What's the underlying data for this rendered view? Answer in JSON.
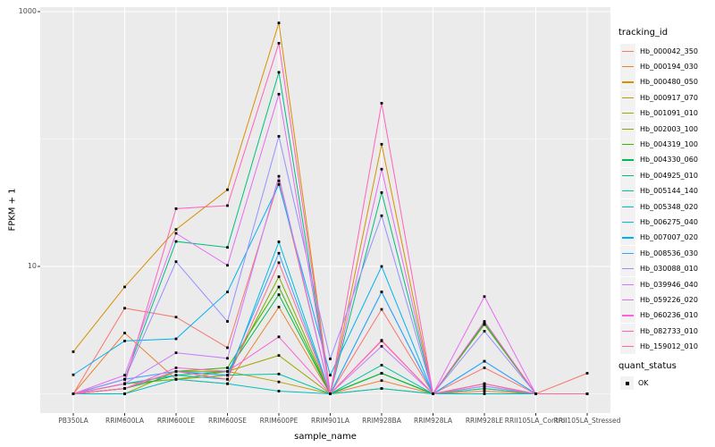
{
  "figure": {
    "ylabel": "FPKM + 1",
    "xlabel": "sample_name"
  },
  "legend": {
    "tracking": {
      "title": "tracking_id"
    },
    "quant": {
      "title": "quant_status",
      "items": [
        {
          "label": "OK"
        }
      ]
    }
  },
  "chart_data": {
    "type": "line",
    "title": "",
    "xlabel": "sample_name",
    "ylabel": "FPKM + 1",
    "y_scale": "log10",
    "ylim": [
      1,
      1000
    ],
    "grid": true,
    "legend_position": "right",
    "panel_bg": "#EBEBEB",
    "grid_color": "#FFFFFF",
    "point_color": "#000000",
    "y_ticks": [
      {
        "value": 10,
        "label": "10"
      },
      {
        "value": 1000,
        "label": "1000"
      }
    ],
    "y_minor_gridlines": [
      1,
      100
    ],
    "quant_status": "OK",
    "categories": [
      "PB350LA",
      "RRIM600LA",
      "RRIM600LE",
      "RRIM600SE",
      "RRIM600PE",
      "RRIM901LA",
      "RRIM928BA",
      "RRIM928LA",
      "RRIM928LE",
      "RRII105LA_Control",
      "RRII105LA_Stressed"
    ],
    "series": [
      {
        "name": "Hb_000042_350",
        "color": "#F8766D",
        "values": [
          1,
          4.7,
          4.0,
          2.3,
          47,
          1,
          4.6,
          1,
          1.6,
          1,
          1.45
        ]
      },
      {
        "name": "Hb_000194_030",
        "color": "#EA8331",
        "values": [
          1,
          3.0,
          1.3,
          1.2,
          4.8,
          1,
          1.27,
          1,
          1.05,
          1,
          1
        ]
      },
      {
        "name": "Hb_000480_050",
        "color": "#D89000",
        "values": [
          2.14,
          6.9,
          19.5,
          40,
          815,
          1,
          91,
          1,
          3.6,
          1,
          1
        ]
      },
      {
        "name": "Hb_000917_070",
        "color": "#C09B00",
        "values": [
          1,
          1.2,
          1.3,
          1.5,
          1.24,
          1,
          1.1,
          1,
          1.1,
          1,
          1
        ]
      },
      {
        "name": "Hb_001091_010",
        "color": "#A3A500",
        "values": [
          1,
          1,
          1.5,
          1.5,
          2.0,
          1,
          1.45,
          1,
          3.5,
          1,
          1
        ]
      },
      {
        "name": "Hb_002003_100",
        "color": "#7CAE00",
        "values": [
          1,
          1.2,
          1.3,
          1.4,
          8.3,
          1,
          1.45,
          1,
          3.5,
          1,
          1
        ]
      },
      {
        "name": "Hb_004319_100",
        "color": "#39B600",
        "values": [
          1,
          1.1,
          1.5,
          1.6,
          6.9,
          1,
          1.45,
          1,
          3.6,
          1,
          1
        ]
      },
      {
        "name": "Hb_004330_060",
        "color": "#00BB4E",
        "values": [
          1,
          1.1,
          1.4,
          1.5,
          6.0,
          1,
          1.45,
          1,
          1.2,
          1,
          1
        ]
      },
      {
        "name": "Hb_004925_010",
        "color": "#00BF7D",
        "values": [
          1,
          1.3,
          15.7,
          14.1,
          334,
          1,
          38,
          1,
          3.6,
          1,
          1
        ]
      },
      {
        "name": "Hb_005144_140",
        "color": "#00C1A3",
        "values": [
          1,
          1.1,
          1.5,
          1.4,
          1.43,
          1,
          1.68,
          1,
          1.1,
          1,
          1
        ]
      },
      {
        "name": "Hb_005348_020",
        "color": "#00BFC4",
        "values": [
          1,
          1,
          1.3,
          1.2,
          1.05,
          1,
          1.1,
          1,
          1,
          1,
          1
        ]
      },
      {
        "name": "Hb_006275_040",
        "color": "#00BAE0",
        "values": [
          1,
          1.2,
          1.4,
          1.3,
          15.6,
          1,
          6.3,
          1,
          1.15,
          1,
          1
        ]
      },
      {
        "name": "Hb_007007_020",
        "color": "#00B0F6",
        "values": [
          1.41,
          2.6,
          2.7,
          6.3,
          44,
          1.4,
          10,
          1,
          1.8,
          1,
          1
        ]
      },
      {
        "name": "Hb_008536_030",
        "color": "#35A2FF",
        "values": [
          1,
          1.3,
          1.5,
          1.4,
          12.7,
          1,
          6.3,
          1,
          1.8,
          1,
          1
        ]
      },
      {
        "name": "Hb_030088_010",
        "color": "#9590FF",
        "values": [
          1,
          1.3,
          10.9,
          3.7,
          105,
          1.88,
          25,
          1,
          3.1,
          1,
          1
        ]
      },
      {
        "name": "Hb_039946_040",
        "color": "#C77CFF",
        "values": [
          1,
          1.2,
          2.1,
          1.9,
          51,
          1,
          2.36,
          1,
          1.15,
          1,
          1
        ]
      },
      {
        "name": "Hb_059226_020",
        "color": "#E76BF3",
        "values": [
          1,
          1.4,
          18.2,
          10.2,
          225,
          1,
          58,
          1,
          5.8,
          1,
          1
        ]
      },
      {
        "name": "Hb_060236_010",
        "color": "#FA62DB",
        "values": [
          1,
          1.1,
          1.6,
          1.5,
          2.8,
          1,
          2.63,
          1,
          1.2,
          1,
          1
        ]
      },
      {
        "name": "Hb_082733_010",
        "color": "#FF62BC",
        "values": [
          1,
          1.2,
          28.4,
          30,
          565,
          1,
          191,
          1,
          3.7,
          1,
          1
        ]
      },
      {
        "name": "Hb_159012_010",
        "color": "#FF6A98",
        "values": [
          1,
          1.1,
          1.5,
          1.3,
          10.7,
          1,
          2.6,
          1,
          1.2,
          1,
          1
        ]
      }
    ]
  }
}
